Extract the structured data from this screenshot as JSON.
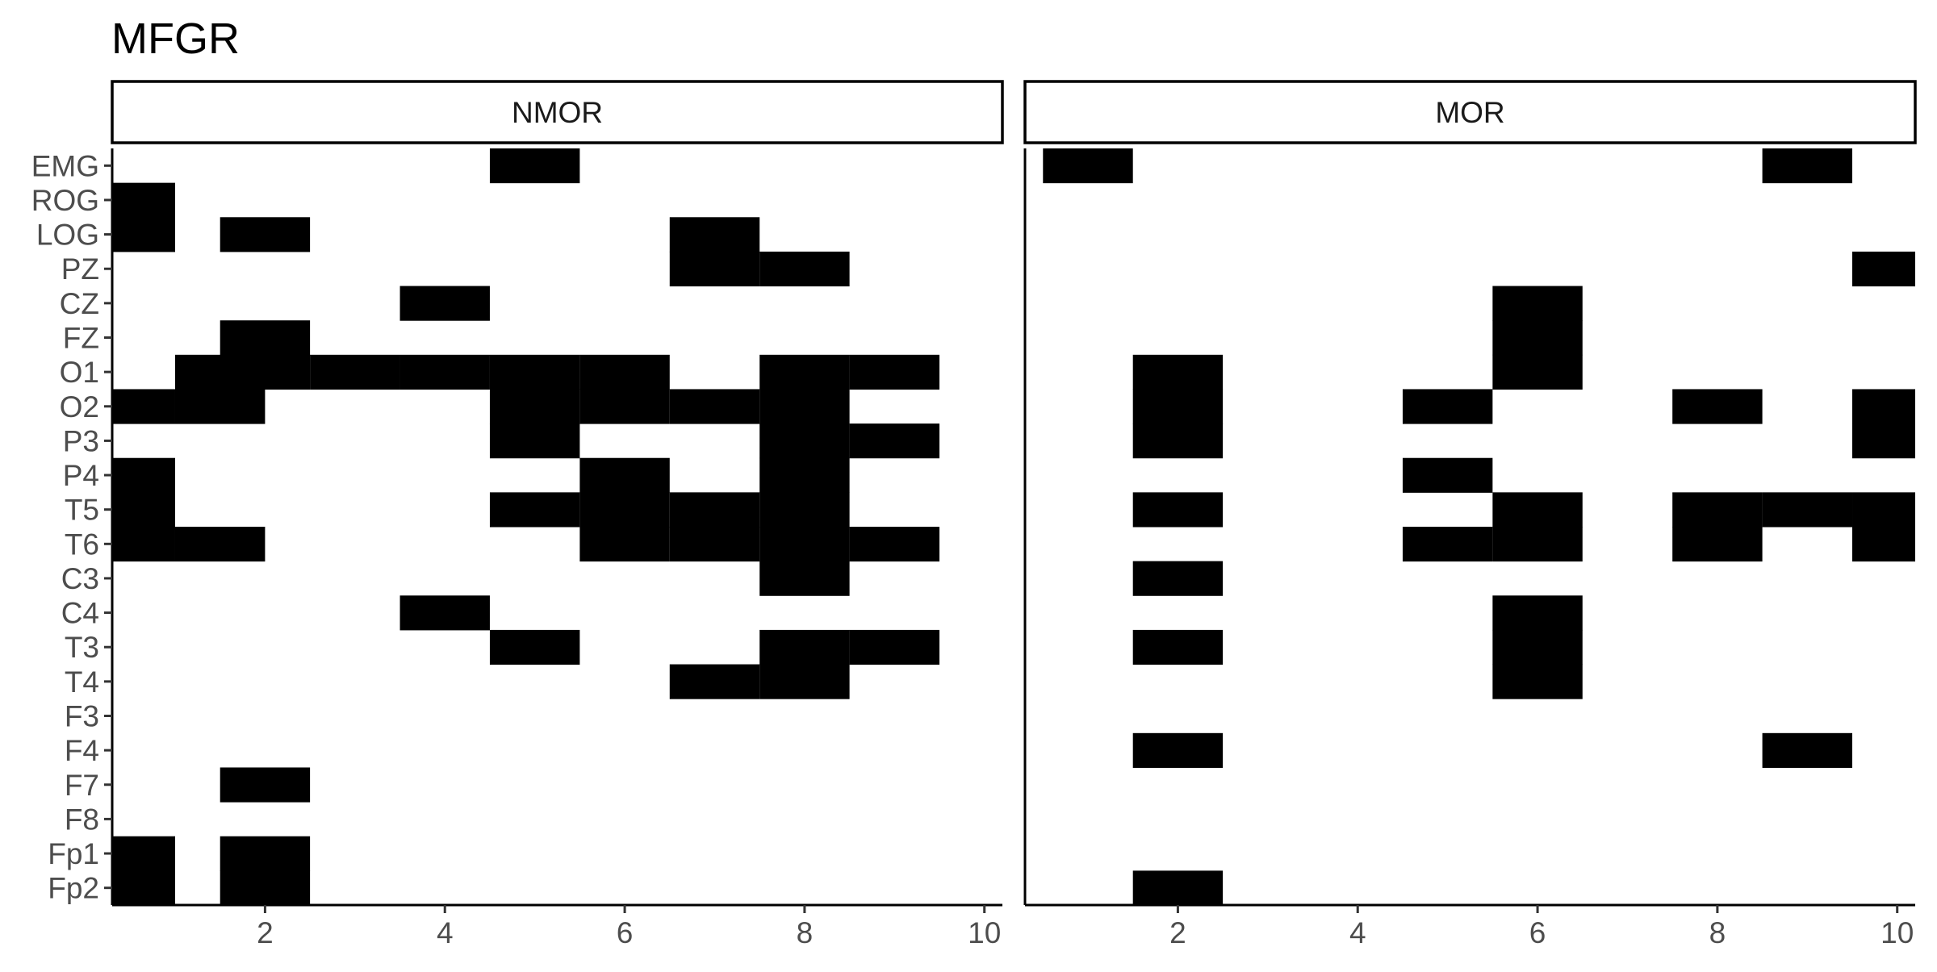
{
  "chart_data": {
    "type": "heatmap",
    "title": "MFGR",
    "xlabel": "",
    "ylabel": "",
    "legend": "none",
    "grid": false,
    "xlim": [
      0.3,
      10.2
    ],
    "x_ticks": [
      2,
      4,
      6,
      8,
      10
    ],
    "cell_width": 1,
    "channels": [
      "EMG",
      "ROG",
      "LOG",
      "PZ",
      "CZ",
      "FZ",
      "O1",
      "O2",
      "P3",
      "P4",
      "T5",
      "T6",
      "C3",
      "C4",
      "T3",
      "T4",
      "F3",
      "F4",
      "F7",
      "F8",
      "Fp1",
      "Fp2"
    ],
    "fill_color": "#000000",
    "panels": [
      {
        "name": "NMOR",
        "filled": {
          "EMG": [
            5
          ],
          "ROG": [
            0.5
          ],
          "LOG": [
            0.5,
            2,
            7
          ],
          "PZ": [
            7,
            8
          ],
          "CZ": [
            4
          ],
          "FZ": [
            2
          ],
          "O1": [
            1.5,
            2,
            3,
            4,
            5,
            6,
            8,
            9
          ],
          "O2": [
            0.5,
            1.5,
            5,
            6,
            7,
            8
          ],
          "P3": [
            5,
            8,
            9
          ],
          "P4": [
            0.5,
            6,
            8
          ],
          "T5": [
            0.5,
            5,
            6,
            7,
            8
          ],
          "T6": [
            0.5,
            1.5,
            6,
            7,
            8,
            9
          ],
          "C3": [
            8
          ],
          "C4": [
            4
          ],
          "T3": [
            5,
            8,
            9
          ],
          "T4": [
            7,
            8
          ],
          "F3": [],
          "F4": [],
          "F7": [
            2
          ],
          "F8": [],
          "Fp1": [
            0.5,
            2
          ],
          "Fp2": [
            0.5,
            2
          ]
        }
      },
      {
        "name": "MOR",
        "filled": {
          "EMG": [
            1,
            9
          ],
          "ROG": [],
          "LOG": [],
          "PZ": [
            10
          ],
          "CZ": [
            6
          ],
          "FZ": [
            6
          ],
          "O1": [
            2,
            6
          ],
          "O2": [
            2,
            5,
            8,
            10
          ],
          "P3": [
            2,
            10
          ],
          "P4": [
            5
          ],
          "T5": [
            2,
            6,
            8,
            9,
            10
          ],
          "T6": [
            5,
            6,
            8,
            10
          ],
          "C3": [
            2
          ],
          "C4": [
            6
          ],
          "T3": [
            2,
            6
          ],
          "T4": [
            6
          ],
          "F3": [],
          "F4": [
            2,
            9
          ],
          "F7": [],
          "F8": [],
          "Fp1": [],
          "Fp2": [
            2
          ]
        }
      }
    ]
  }
}
